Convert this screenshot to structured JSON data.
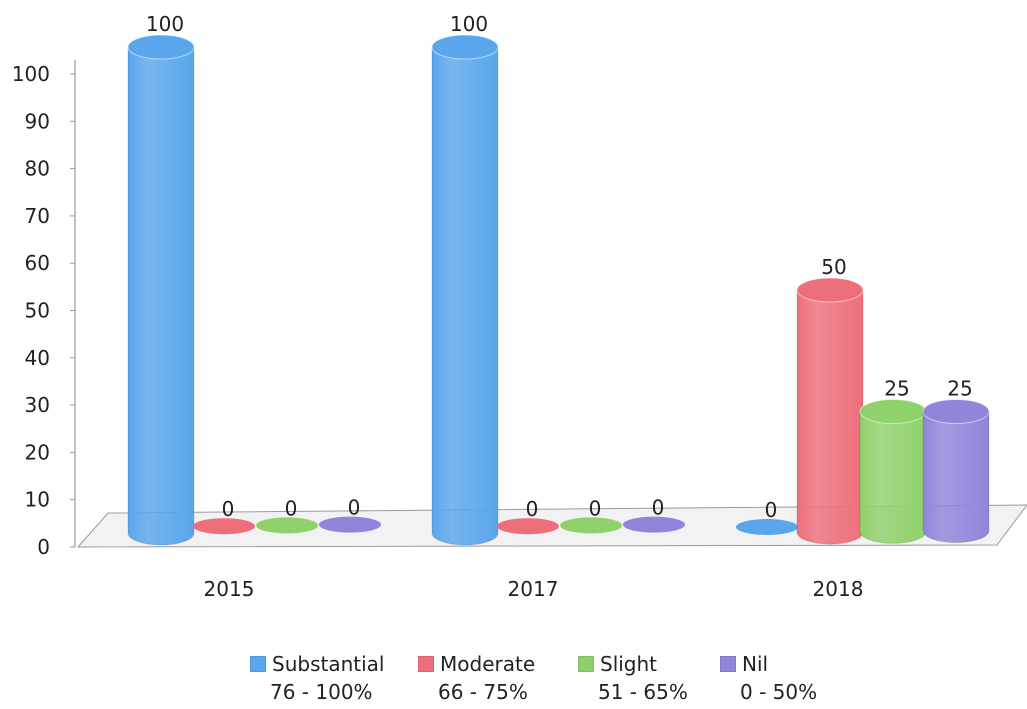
{
  "chart_data": {
    "type": "bar",
    "categories": [
      "2015",
      "2017",
      "2018"
    ],
    "series": [
      {
        "name": "Substantial",
        "range": "76 - 100%",
        "color": "#5aa6ec",
        "values": [
          100,
          100,
          0
        ]
      },
      {
        "name": "Moderate",
        "range": "66 - 75%",
        "color": "#ee6f7c",
        "values": [
          0,
          0,
          50
        ]
      },
      {
        "name": "Slight",
        "range": "51 - 65%",
        "color": "#8fd16b",
        "values": [
          0,
          0,
          25
        ]
      },
      {
        "name": "Nil",
        "range": "0 - 50%",
        "color": "#8f86da",
        "values": [
          0,
          0,
          25
        ]
      }
    ],
    "ylim": [
      0,
      100
    ],
    "yticks": [
      0,
      10,
      20,
      30,
      40,
      50,
      60,
      70,
      80,
      90,
      100
    ],
    "title": "",
    "xlabel": "",
    "ylabel": "",
    "grid": false,
    "three_d": true,
    "data_labels": true,
    "legend_position": "bottom"
  }
}
